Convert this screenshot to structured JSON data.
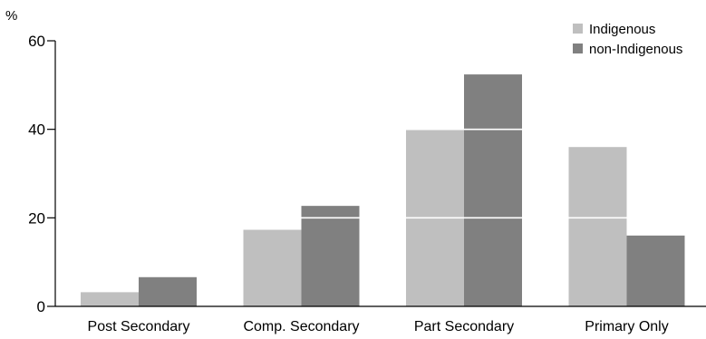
{
  "chart_data": {
    "type": "bar",
    "unit": "%",
    "categories": [
      "Post Secondary",
      "Comp. Secondary",
      "Part Secondary",
      "Primary Only"
    ],
    "series": [
      {
        "name": "Indigenous",
        "values": [
          3.2,
          17.3,
          40.0,
          36.0
        ],
        "color": "#bfbfbf"
      },
      {
        "name": "non-Indigenous",
        "values": [
          6.6,
          22.7,
          52.4,
          16.0
        ],
        "color": "#808080"
      }
    ],
    "yticks": [
      "0",
      "20",
      "40",
      "60"
    ],
    "ylim": [
      0,
      60
    ],
    "grid": "white lines drawn across bars at tick values",
    "legend_position": "top-right"
  }
}
